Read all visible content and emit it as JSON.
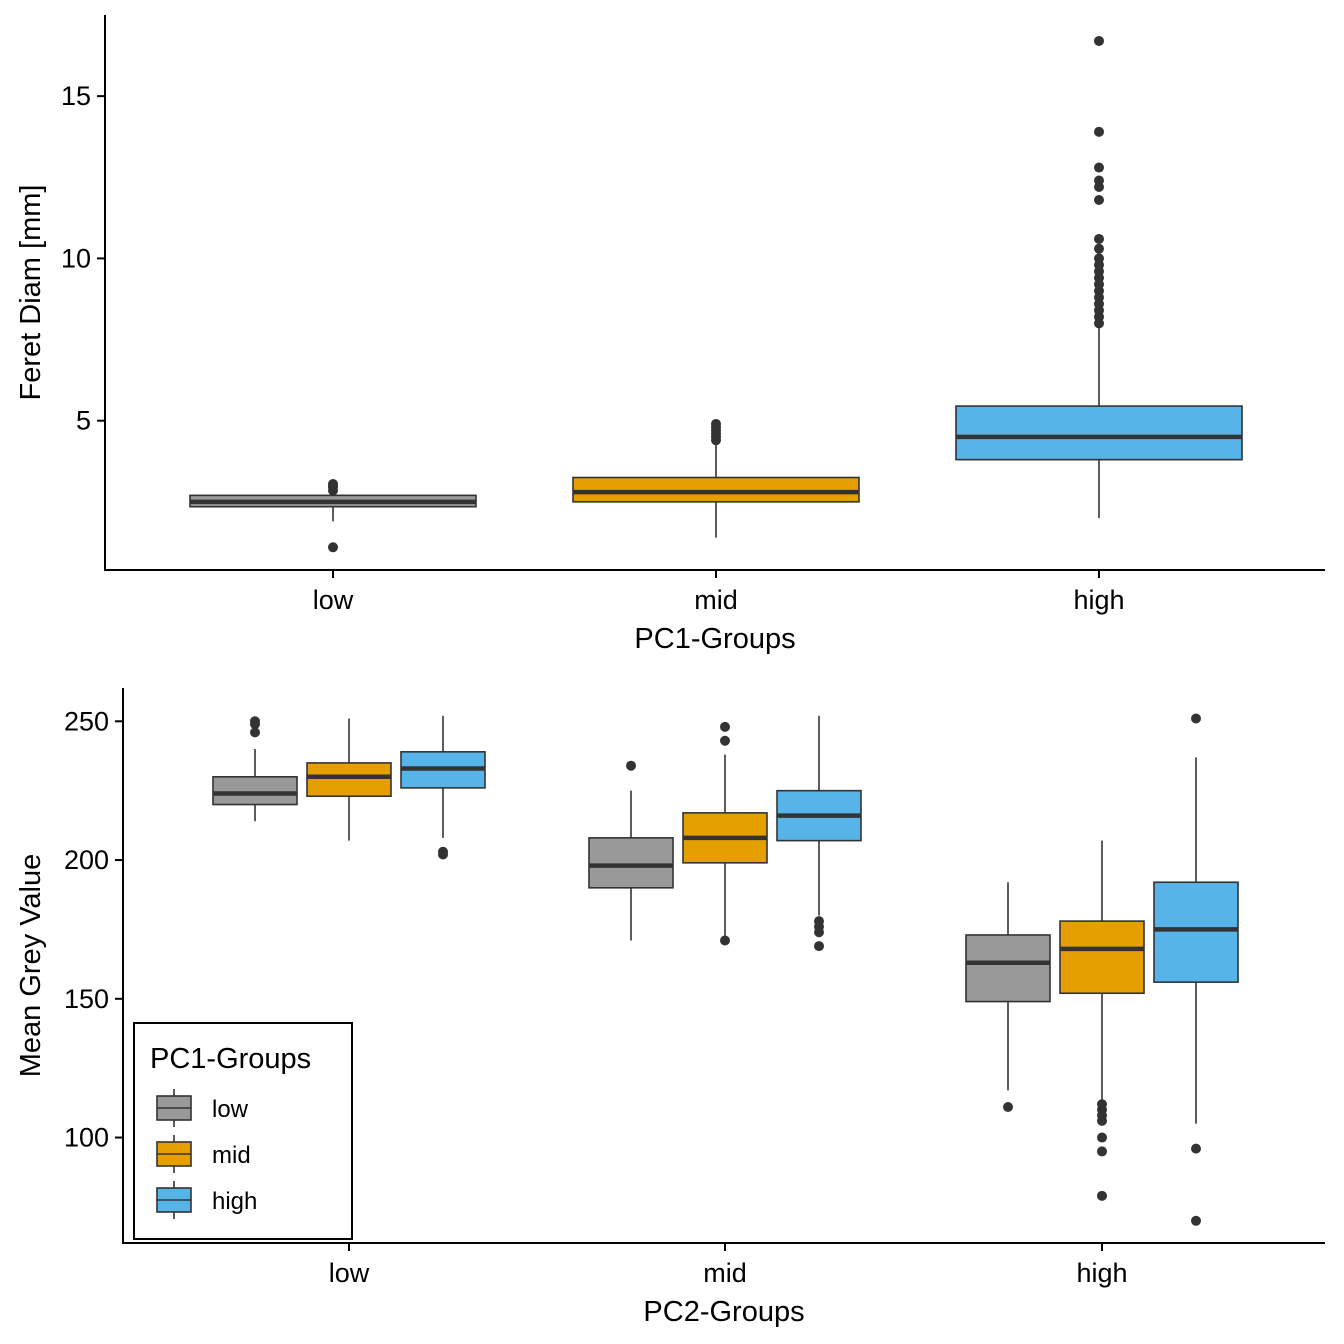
{
  "colors": {
    "low": "#999999",
    "mid": "#E69F00",
    "high": "#56B4E9",
    "outline": "#333333"
  },
  "chart_data": [
    {
      "type": "box",
      "xlabel": "PC1-Groups",
      "ylabel": "Feret Diam [mm]",
      "ylim": [
        0.4,
        17.5
      ],
      "yticks": [
        5,
        10,
        15
      ],
      "categories": [
        "low",
        "mid",
        "high"
      ],
      "boxes": [
        {
          "category": "low",
          "group": "low",
          "min": 1.9,
          "q1": 2.35,
          "median": 2.5,
          "q3": 2.7,
          "max": 2.9,
          "outliers": [
            1.1,
            2.85,
            2.95,
            3.0,
            3.05
          ]
        },
        {
          "category": "mid",
          "group": "mid",
          "min": 1.4,
          "q1": 2.5,
          "median": 2.8,
          "q3": 3.25,
          "max": 4.3,
          "outliers": [
            4.4,
            4.5,
            4.6,
            4.7,
            4.8,
            4.9
          ]
        },
        {
          "category": "high",
          "group": "high",
          "min": 2.0,
          "q1": 3.8,
          "median": 4.5,
          "q3": 5.45,
          "max": 7.9,
          "outliers": [
            8.0,
            8.2,
            8.4,
            8.6,
            8.8,
            9.0,
            9.2,
            9.4,
            9.6,
            9.8,
            10.0,
            10.3,
            10.6,
            11.8,
            12.2,
            12.4,
            12.8,
            13.9,
            16.7
          ]
        }
      ]
    },
    {
      "type": "box",
      "xlabel": "PC2-Groups",
      "ylabel": "Mean Grey Value",
      "ylim": [
        62,
        262
      ],
      "yticks": [
        100,
        150,
        200,
        250
      ],
      "categories": [
        "low",
        "mid",
        "high"
      ],
      "legend": {
        "title": "PC1-Groups",
        "position": "bottom-left",
        "items": [
          {
            "label": "low",
            "group": "low"
          },
          {
            "label": "mid",
            "group": "mid"
          },
          {
            "label": "high",
            "group": "high"
          }
        ]
      },
      "boxes": [
        {
          "category": "low",
          "group": "low",
          "min": 214,
          "q1": 220,
          "median": 224,
          "q3": 230,
          "max": 240,
          "outliers": [
            246,
            249,
            250
          ]
        },
        {
          "category": "low",
          "group": "mid",
          "min": 207,
          "q1": 223,
          "median": 230,
          "q3": 235,
          "max": 251,
          "outliers": []
        },
        {
          "category": "low",
          "group": "high",
          "min": 208,
          "q1": 226,
          "median": 233,
          "q3": 239,
          "max": 252,
          "outliers": [
            202,
            203
          ]
        },
        {
          "category": "mid",
          "group": "low",
          "min": 171,
          "q1": 190,
          "median": 198,
          "q3": 208,
          "max": 225,
          "outliers": [
            234
          ]
        },
        {
          "category": "mid",
          "group": "mid",
          "min": 172,
          "q1": 199,
          "median": 208,
          "q3": 217,
          "max": 238,
          "outliers": [
            171,
            243,
            248
          ]
        },
        {
          "category": "mid",
          "group": "high",
          "min": 180,
          "q1": 207,
          "median": 216,
          "q3": 225,
          "max": 252,
          "outliers": [
            169,
            174,
            176,
            178
          ]
        },
        {
          "category": "high",
          "group": "low",
          "min": 117,
          "q1": 149,
          "median": 163,
          "q3": 173,
          "max": 192,
          "outliers": [
            111
          ]
        },
        {
          "category": "high",
          "group": "mid",
          "min": 113,
          "q1": 152,
          "median": 168,
          "q3": 178,
          "max": 207,
          "outliers": [
            79,
            95,
            100,
            106,
            108,
            110,
            112
          ]
        },
        {
          "category": "high",
          "group": "high",
          "min": 105,
          "q1": 156,
          "median": 175,
          "q3": 192,
          "max": 237,
          "outliers": [
            70,
            96,
            251
          ]
        }
      ]
    }
  ]
}
